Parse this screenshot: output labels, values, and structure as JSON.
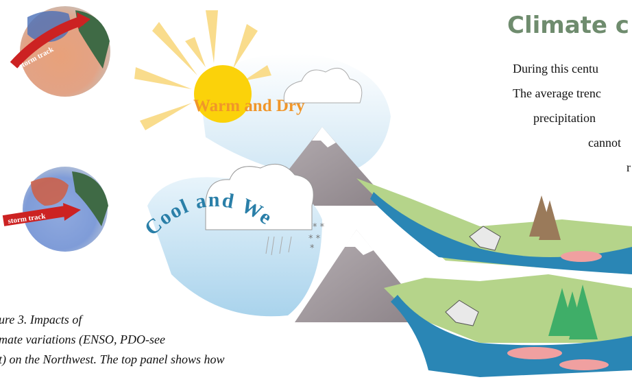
{
  "globes": [
    {
      "label": "storm track"
    },
    {
      "label": "storm track"
    }
  ],
  "panels": [
    {
      "label": "Warm and Dry"
    },
    {
      "label": "Cool and Wet"
    }
  ],
  "article": {
    "heading": "Climate c",
    "lines": [
      "During this centu",
      "The average trenc",
      "precipitation",
      "cannot",
      "r"
    ]
  },
  "caption": {
    "lines": [
      "ure 3.  Impacts of",
      "mate variations (ENSO, PDO-see",
      "t) on the Northwest.  The top panel shows how"
    ]
  }
}
